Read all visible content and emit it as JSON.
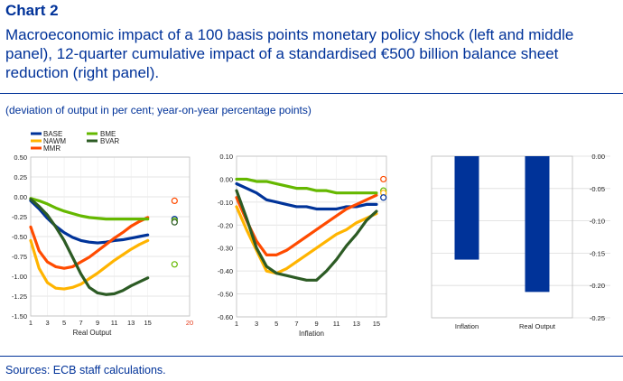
{
  "header": {
    "chart_number": "Chart 2",
    "title": "Macroeconomic impact of a 100 basis points monetary policy shock (left and middle panel), 12-quarter cumulative impact of a standardised €500 billion balance sheet reduction (right panel).",
    "subtitle": "(deviation of output in per cent; year-on-year percentage points)"
  },
  "footer": {
    "sources": "Sources: ECB staff calculations."
  },
  "colors": {
    "BASE": "#003399",
    "NAWM": "#FFB400",
    "MMR": "#FF4B00",
    "BME": "#65B800",
    "BVAR": "#2C5B24",
    "bar": "#003399"
  },
  "chart_data": [
    {
      "type": "line",
      "title": "",
      "xlabel": "Real Output",
      "ylabel": "",
      "x": [
        1,
        2,
        3,
        4,
        5,
        6,
        7,
        8,
        9,
        10,
        11,
        12,
        13,
        14,
        15
      ],
      "xticks": [
        "1",
        "3",
        "5",
        "7",
        "9",
        "11",
        "13",
        "15"
      ],
      "extra_xtick": "20",
      "xlim": [
        1,
        20
      ],
      "ylim": [
        -1.5,
        0.5
      ],
      "yticks": [
        "0.50",
        "0.25",
        "0.00",
        "-0.25",
        "-0.50",
        "-0.75",
        "-1.00",
        "-1.25",
        "-1.50"
      ],
      "ytick_values": [
        0.5,
        0.25,
        0,
        -0.25,
        -0.5,
        -0.75,
        -1.0,
        -1.25,
        -1.5
      ],
      "legend": [
        "BASE",
        "NAWM",
        "MMR",
        "BME",
        "BVAR"
      ],
      "series": [
        {
          "name": "BASE",
          "values": [
            -0.05,
            -0.15,
            -0.27,
            -0.37,
            -0.45,
            -0.51,
            -0.55,
            -0.57,
            -0.58,
            -0.57,
            -0.55,
            -0.54,
            -0.52,
            -0.5,
            -0.48
          ]
        },
        {
          "name": "NAWM",
          "values": [
            -0.55,
            -0.9,
            -1.08,
            -1.15,
            -1.16,
            -1.14,
            -1.1,
            -1.03,
            -0.96,
            -0.88,
            -0.8,
            -0.73,
            -0.66,
            -0.6,
            -0.55
          ]
        },
        {
          "name": "MMR",
          "values": [
            -0.38,
            -0.68,
            -0.82,
            -0.88,
            -0.9,
            -0.88,
            -0.82,
            -0.76,
            -0.68,
            -0.6,
            -0.52,
            -0.45,
            -0.37,
            -0.31,
            -0.26
          ]
        },
        {
          "name": "BME",
          "values": [
            -0.02,
            -0.05,
            -0.09,
            -0.14,
            -0.18,
            -0.21,
            -0.24,
            -0.26,
            -0.27,
            -0.28,
            -0.28,
            -0.28,
            -0.28,
            -0.28,
            -0.28
          ]
        },
        {
          "name": "BVAR",
          "values": [
            -0.03,
            -0.12,
            -0.23,
            -0.38,
            -0.55,
            -0.76,
            -0.97,
            -1.14,
            -1.21,
            -1.23,
            -1.22,
            -1.18,
            -1.12,
            -1.07,
            -1.02
          ]
        }
      ],
      "markers": [
        {
          "name": "MMR",
          "value": -0.05
        },
        {
          "name": "BASE",
          "value": -0.28
        },
        {
          "name": "BME",
          "value": -0.3
        },
        {
          "name": "BVAR",
          "value": -0.32
        },
        {
          "name": "BME",
          "value": -0.85
        }
      ]
    },
    {
      "type": "line",
      "title": "",
      "xlabel": "Inflation",
      "ylabel": "",
      "x": [
        1,
        2,
        3,
        4,
        5,
        6,
        7,
        8,
        9,
        10,
        11,
        12,
        13,
        14,
        15
      ],
      "xticks": [
        "1",
        "3",
        "5",
        "7",
        "9",
        "11",
        "13",
        "15"
      ],
      "extra_xtick": "",
      "xlim": [
        1,
        16
      ],
      "ylim": [
        -0.6,
        0.1
      ],
      "yticks": [
        "0.10",
        "0.00",
        "-0.10",
        "-0.20",
        "-0.30",
        "-0.40",
        "-0.50",
        "-0.60"
      ],
      "ytick_values": [
        0.1,
        0,
        -0.1,
        -0.2,
        -0.3,
        -0.4,
        -0.5,
        -0.6
      ],
      "series": [
        {
          "name": "BASE",
          "values": [
            -0.02,
            -0.04,
            -0.06,
            -0.09,
            -0.1,
            -0.11,
            -0.12,
            -0.12,
            -0.13,
            -0.13,
            -0.13,
            -0.12,
            -0.12,
            -0.11,
            -0.11
          ]
        },
        {
          "name": "NAWM",
          "values": [
            -0.12,
            -0.22,
            -0.31,
            -0.4,
            -0.41,
            -0.39,
            -0.36,
            -0.33,
            -0.3,
            -0.27,
            -0.24,
            -0.22,
            -0.19,
            -0.17,
            -0.15
          ]
        },
        {
          "name": "MMR",
          "values": [
            -0.08,
            -0.18,
            -0.27,
            -0.33,
            -0.33,
            -0.31,
            -0.28,
            -0.25,
            -0.22,
            -0.19,
            -0.16,
            -0.13,
            -0.11,
            -0.09,
            -0.07
          ]
        },
        {
          "name": "BME",
          "values": [
            0.0,
            0.0,
            -0.01,
            -0.01,
            -0.02,
            -0.03,
            -0.04,
            -0.04,
            -0.05,
            -0.05,
            -0.06,
            -0.06,
            -0.06,
            -0.06,
            -0.06
          ]
        },
        {
          "name": "BVAR",
          "values": [
            -0.05,
            -0.17,
            -0.3,
            -0.38,
            -0.41,
            -0.42,
            -0.43,
            -0.44,
            -0.44,
            -0.4,
            -0.35,
            -0.29,
            -0.24,
            -0.18,
            -0.14
          ]
        }
      ],
      "markers": [
        {
          "name": "MMR",
          "value": 0.0
        },
        {
          "name": "BME",
          "value": -0.05
        },
        {
          "name": "NAWM",
          "value": -0.06
        },
        {
          "name": "BASE",
          "value": -0.08
        }
      ]
    },
    {
      "type": "bar",
      "title": "",
      "categories": [
        "Inflation",
        "Real Output"
      ],
      "values": [
        -0.16,
        -0.21
      ],
      "ylim": [
        -0.25,
        0.0
      ],
      "yticks": [
        "0.00",
        "-0.05",
        "-0.10",
        "-0.15",
        "-0.20",
        "-0.25"
      ],
      "ytick_values": [
        0,
        -0.05,
        -0.1,
        -0.15,
        -0.2,
        -0.25
      ]
    }
  ]
}
